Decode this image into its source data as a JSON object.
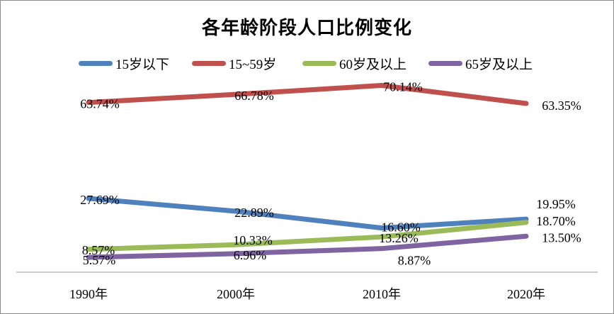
{
  "chart_data": {
    "type": "line",
    "title": "各年龄阶段人口比例变化",
    "xlabel": "",
    "ylabel": "",
    "grid": false,
    "legend_position": "top",
    "categories": [
      "1990年",
      "2000年",
      "2010年",
      "2020年"
    ],
    "series": [
      {
        "name": "15岁以下",
        "color": "#4f81bd",
        "values": [
          27.69,
          22.89,
          16.6,
          19.95
        ],
        "labels": [
          "27.69%",
          "22.89%",
          "16.60%",
          "19.95%"
        ]
      },
      {
        "name": "15~59岁",
        "color": "#c0504d",
        "values": [
          63.74,
          66.78,
          70.14,
          63.35
        ],
        "labels": [
          "63.74%",
          "66.78%",
          "70.14%",
          "63.35%"
        ]
      },
      {
        "name": "60岁及以上",
        "color": "#9bbb59",
        "values": [
          8.57,
          10.33,
          13.26,
          18.7
        ],
        "labels": [
          "8.57%",
          "10.33%",
          "13.26%",
          "18.70%"
        ]
      },
      {
        "name": "65岁及以上",
        "color": "#8064a2",
        "values": [
          5.57,
          6.96,
          8.87,
          13.5
        ],
        "labels": [
          "5.57%",
          "6.96%",
          "8.87%",
          "13.50%"
        ]
      }
    ]
  }
}
